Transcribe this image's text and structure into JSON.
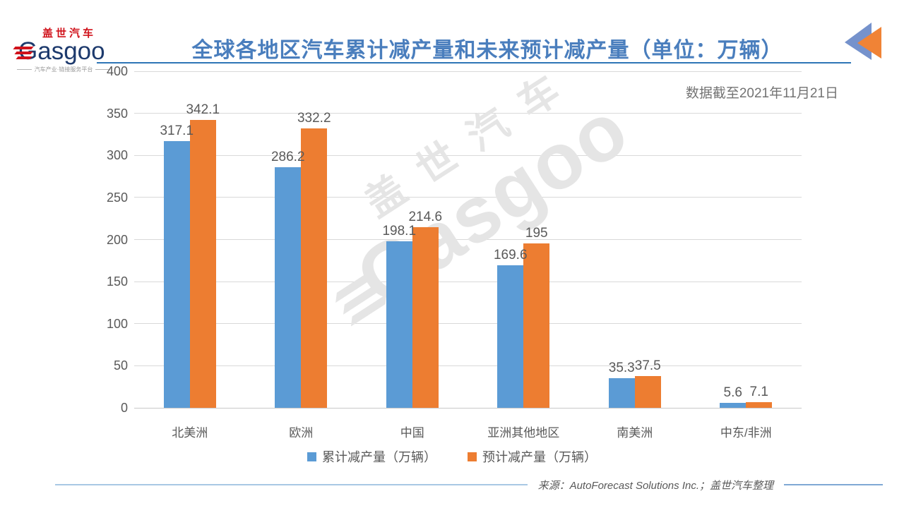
{
  "logo": {
    "cn": "盖世汽车",
    "en": "Gasgoo",
    "tagline": "汽车产业·链接服务平台"
  },
  "header": {
    "title": "全球各地区汽车累计减产量和未来预计减产量（单位：万辆）"
  },
  "note": "数据截至2021年11月21日",
  "watermark": {
    "cn": "盖世汽车",
    "en": "Gasgoo"
  },
  "footer": {
    "source": "来源：AutoForecast Solutions Inc.；盖世汽车整理"
  },
  "colors": {
    "bar_blue": "#5B9BD5",
    "bar_orange": "#ED7D31",
    "title_blue": "#4A7EBD",
    "title_rule": "#2E75B6",
    "logo_red": "#D0121B",
    "logo_navy": "#1D3A6D",
    "grid_gray": "#D9D9D9",
    "label_gray": "#595959",
    "note_gray": "#737373",
    "icon_triangle_blue": "#7592CC",
    "icon_triangle_orange": "#F08336",
    "footer_line_left": "#A8C8E4",
    "footer_line_right": "#7FA8D4"
  },
  "chart_data": {
    "type": "bar",
    "title": "全球各地区汽车累计减产量和未来预计减产量（单位：万辆）",
    "annotation": "数据截至2021年11月21日",
    "categories": [
      "北美洲",
      "欧洲",
      "中国",
      "亚洲其他地区",
      "南美洲",
      "中东/非洲"
    ],
    "series": [
      {
        "name": "累计减产量（万辆）",
        "color": "#5B9BD5",
        "values": [
          317.1,
          286.2,
          198.1,
          169.6,
          35.3,
          5.6
        ]
      },
      {
        "name": "预计减产量（万辆）",
        "color": "#ED7D31",
        "values": [
          342.1,
          332.2,
          214.6,
          195,
          37.5,
          7.1
        ]
      }
    ],
    "xlabel": "",
    "ylabel": "",
    "ylim": [
      0,
      400
    ],
    "yticks": [
      0,
      50,
      100,
      150,
      200,
      250,
      300,
      350,
      400
    ],
    "grid": true,
    "legend_position": "bottom",
    "data_labels": true
  }
}
